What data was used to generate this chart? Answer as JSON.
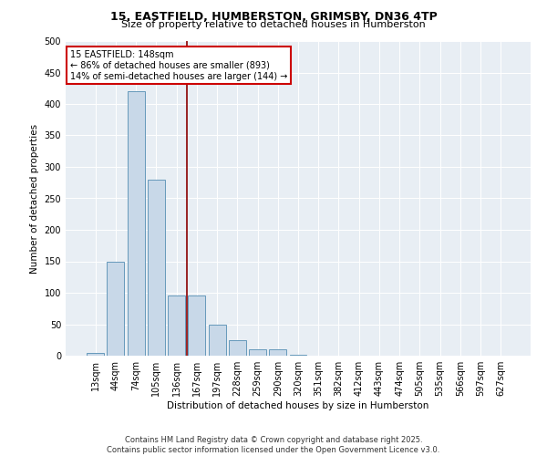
{
  "title_line1": "15, EASTFIELD, HUMBERSTON, GRIMSBY, DN36 4TP",
  "title_line2": "Size of property relative to detached houses in Humberston",
  "xlabel": "Distribution of detached houses by size in Humberston",
  "ylabel": "Number of detached properties",
  "categories": [
    "13sqm",
    "44sqm",
    "74sqm",
    "105sqm",
    "136sqm",
    "167sqm",
    "197sqm",
    "228sqm",
    "259sqm",
    "290sqm",
    "320sqm",
    "351sqm",
    "382sqm",
    "412sqm",
    "443sqm",
    "474sqm",
    "505sqm",
    "535sqm",
    "566sqm",
    "597sqm",
    "627sqm"
  ],
  "values": [
    5,
    150,
    420,
    280,
    95,
    95,
    50,
    25,
    10,
    10,
    2,
    0,
    0,
    0,
    0,
    0,
    0,
    0,
    0,
    0,
    0
  ],
  "bar_color": "#c8d8e8",
  "bar_edge_color": "#6699bb",
  "vline_x": 4.5,
  "vline_color": "#8b0000",
  "annotation_text": "15 EASTFIELD: 148sqm\n← 86% of detached houses are smaller (893)\n14% of semi-detached houses are larger (144) →",
  "annotation_box_color": "#cc0000",
  "annotation_text_color": "black",
  "footer_line1": "Contains HM Land Registry data © Crown copyright and database right 2025.",
  "footer_line2": "Contains public sector information licensed under the Open Government Licence v3.0.",
  "plot_bg_color": "#e8eef4",
  "fig_bg_color": "#ffffff",
  "ylim": [
    0,
    500
  ],
  "yticks": [
    0,
    50,
    100,
    150,
    200,
    250,
    300,
    350,
    400,
    450,
    500
  ],
  "title1_fontsize": 9,
  "title2_fontsize": 8,
  "xlabel_fontsize": 7.5,
  "ylabel_fontsize": 7.5,
  "tick_fontsize": 7,
  "footer_fontsize": 6,
  "annot_fontsize": 7
}
